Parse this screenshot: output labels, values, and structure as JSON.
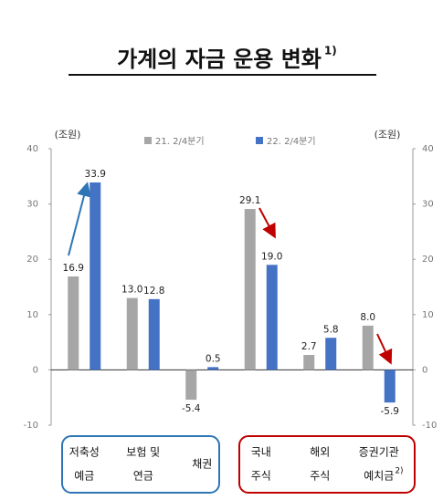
{
  "chart_data": {
    "type": "bar",
    "title": "가계의 자금 운용 변화",
    "title_note": "1)",
    "y_unit": "(조원)",
    "y2_unit": "(조원)",
    "categories": [
      {
        "lines": [
          "저축성",
          "예금"
        ]
      },
      {
        "lines": [
          "보험 및",
          "연금"
        ]
      },
      {
        "lines": [
          "채권"
        ]
      },
      {
        "lines": [
          "국내",
          "주식"
        ]
      },
      {
        "lines": [
          "해외",
          "주식"
        ]
      },
      {
        "lines": [
          "증권기관",
          "예치금"
        ],
        "note": "2)"
      }
    ],
    "series": [
      {
        "name": "21. 2/4분기",
        "color": "#a6a6a6",
        "values": [
          16.9,
          13.0,
          -5.4,
          29.1,
          2.7,
          8.0
        ],
        "value_labels": [
          "16.9",
          "13.0",
          "-5.4",
          "29.1",
          "2.7",
          "8.0"
        ]
      },
      {
        "name": "22. 2/4분기",
        "color": "#4472c4",
        "values": [
          33.9,
          12.8,
          0.5,
          19.0,
          5.8,
          -5.9
        ],
        "value_labels": [
          "33.9",
          "12.8",
          "0.5",
          "19.0",
          "5.8",
          "-5.9"
        ]
      }
    ],
    "ylim": [
      -10,
      40
    ],
    "yticks": [
      -10,
      0,
      10,
      20,
      30,
      40
    ],
    "y2lim": [
      -10,
      40
    ],
    "y2ticks": [
      -10,
      0,
      10,
      20,
      30,
      40
    ]
  }
}
